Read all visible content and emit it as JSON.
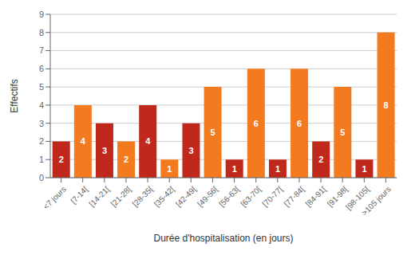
{
  "chart_data": {
    "type": "bar",
    "categories": [
      "<7 jours",
      "[7-14[",
      "[14-21[",
      "[21-28[",
      "[28-35[",
      "[35-42[",
      "[42-49[",
      "[49-56[",
      "[56-63[",
      "[63-70[",
      "[70-77[",
      "[77-84[",
      "[84-91[",
      "[91-98[",
      "[98-105[",
      ">105 jours"
    ],
    "values": [
      2,
      4,
      3,
      2,
      4,
      1,
      3,
      5,
      1,
      6,
      1,
      6,
      2,
      5,
      1,
      8
    ],
    "colors": [
      "#C0281C",
      "#F47A20",
      "#C0281C",
      "#F47A20",
      "#C0281C",
      "#F47A20",
      "#C0281C",
      "#F47A20",
      "#C0281C",
      "#F47A20",
      "#C0281C",
      "#F47A20",
      "#C0281C",
      "#F47A20",
      "#C0281C",
      "#F47A20"
    ],
    "xlabel": "Durée d'hospitalisation  (en jours)",
    "ylabel": "Effectifs",
    "ylim": [
      0,
      9
    ],
    "yticks": [
      0,
      1,
      2,
      3,
      4,
      5,
      6,
      7,
      8,
      9
    ],
    "grid": true,
    "data_labels": true
  }
}
